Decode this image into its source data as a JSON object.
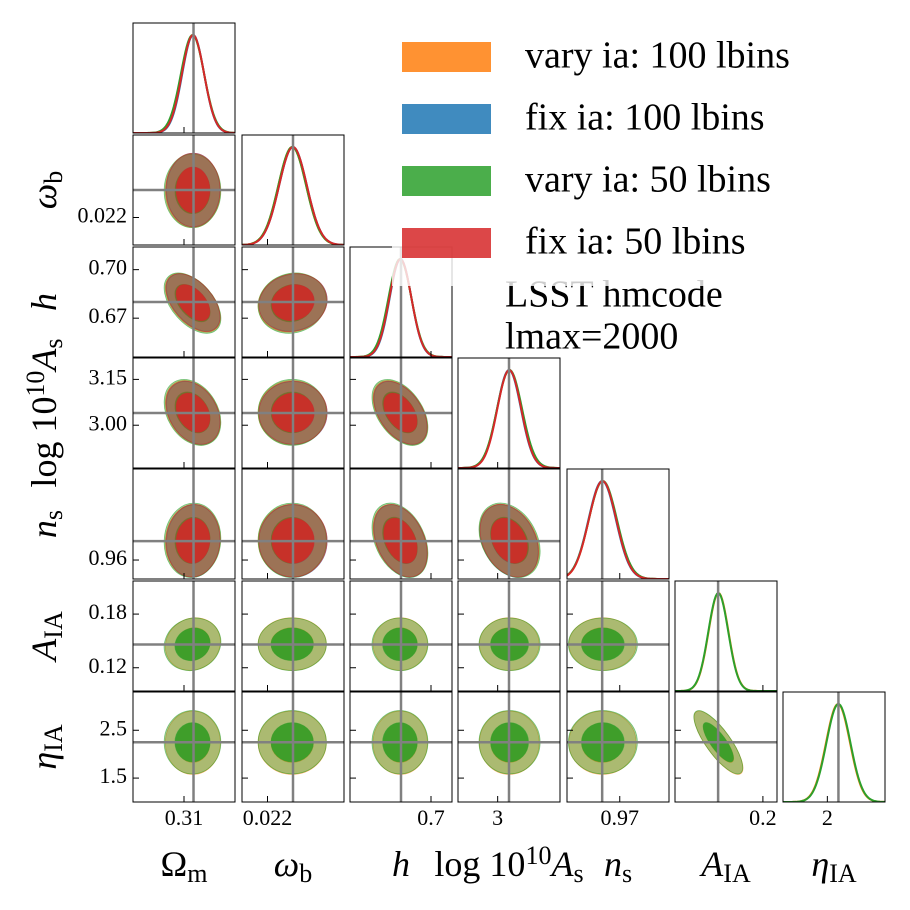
{
  "chart_data": {
    "type": "corner",
    "parameters": [
      {
        "label": [
          {
            "text": "Ω"
          },
          {
            "text": "m",
            "shift": "sub"
          }
        ],
        "lim": [
          0.28,
          0.34
        ],
        "fiducial": 0.3156,
        "xticks": [
          0.31
        ],
        "yticks": []
      },
      {
        "label": [
          {
            "text": "ω",
            "italic": true
          },
          {
            "text": "b",
            "shift": "sub"
          }
        ],
        "lim": [
          0.02167,
          0.02299
        ],
        "fiducial": 0.02233,
        "xticks": [
          0.022
        ],
        "yticks": [
          0.022
        ]
      },
      {
        "label": [
          {
            "text": "h",
            "italic": true
          }
        ],
        "lim": [
          0.646,
          0.714
        ],
        "fiducial": 0.68,
        "xticks": [
          0.7
        ],
        "yticks": [
          {
            "value": 0.7,
            "label": "0.70"
          },
          0.67
        ]
      },
      {
        "label": [
          {
            "text": "log 10"
          },
          {
            "text": "10",
            "shift": "super"
          },
          {
            "text": "A",
            "italic": true
          },
          {
            "text": "s",
            "shift": "sub"
          }
        ],
        "lim": [
          2.86,
          3.22
        ],
        "fiducial": 3.04,
        "xticks": [
          3
        ],
        "yticks": [
          3.15,
          {
            "value": 3,
            "label": "3.00"
          }
        ]
      },
      {
        "label": [
          {
            "text": "n",
            "italic": true
          },
          {
            "text": "s",
            "shift": "sub"
          }
        ],
        "lim": [
          0.955,
          0.984
        ],
        "fiducial": 0.965,
        "xticks": [
          0.97
        ],
        "yticks": [
          0.96
        ]
      },
      {
        "label": [
          {
            "text": "A",
            "italic": true
          },
          {
            "text": "IA",
            "shift": "sub"
          }
        ],
        "lim": [
          0.094,
          0.217
        ],
        "fiducial": 0.146,
        "xticks": [
          0.2
        ],
        "yticks": [
          0.18,
          0.12
        ]
      },
      {
        "label": [
          {
            "text": "η",
            "italic": true
          },
          {
            "text": "IA",
            "shift": "sub"
          }
        ],
        "lim": [
          1.0,
          3.3
        ],
        "fiducial": 2.25,
        "xticks": [
          2
        ],
        "yticks": [
          2.5,
          1.5
        ]
      }
    ],
    "correlation": [
      [
        1,
        0,
        -0.5,
        -0.3,
        0.05,
        0.1,
        0
      ],
      [
        0,
        1,
        0.1,
        0,
        0,
        0,
        0
      ],
      [
        -0.5,
        0.1,
        1,
        -0.45,
        -0.35,
        0,
        0
      ],
      [
        -0.3,
        0,
        -0.45,
        1,
        -0.3,
        0,
        0
      ],
      [
        0.05,
        0,
        -0.35,
        -0.3,
        1,
        0,
        0
      ],
      [
        0.1,
        0,
        0,
        0,
        0,
        1,
        -0.8
      ],
      [
        0,
        0,
        0,
        0,
        0,
        -0.8,
        1
      ]
    ],
    "series": [
      {
        "name": "vary ia: 100 lbins",
        "color": "#ff7f0e",
        "mean": [
          0.3152,
          0.02232,
          0.6795,
          3.041,
          0.9651,
          0.1465,
          2.24
        ],
        "sigma": [
          0.0066,
          0.00018,
          0.0074,
          0.043,
          0.0039,
          0.012,
          0.27
        ]
      },
      {
        "name": "fix ia: 100 lbins",
        "color": "#1f77b4",
        "mean": [
          0.3154,
          0.02233,
          0.6797,
          3.04,
          0.965,
          null,
          null
        ],
        "sigma": [
          0.0064,
          0.00018,
          0.0072,
          0.042,
          0.0039,
          null,
          null
        ]
      },
      {
        "name": "vary ia: 50 lbins",
        "color": "#2ca02c",
        "mean": [
          0.315,
          0.02232,
          0.6793,
          3.042,
          0.9652,
          0.1462,
          2.25
        ],
        "sigma": [
          0.0068,
          0.00018,
          0.0076,
          0.044,
          0.004,
          0.012,
          0.27
        ]
      },
      {
        "name": "fix ia: 50 lbins",
        "color": "#d62728",
        "mean": [
          0.3153,
          0.02233,
          0.6796,
          3.041,
          0.9651,
          null,
          null
        ],
        "sigma": [
          0.0065,
          0.00018,
          0.0073,
          0.042,
          0.0039,
          null,
          null
        ]
      }
    ],
    "legend": "upper right",
    "annotation": [
      "LSST hmcode",
      "lmax=2000"
    ]
  }
}
